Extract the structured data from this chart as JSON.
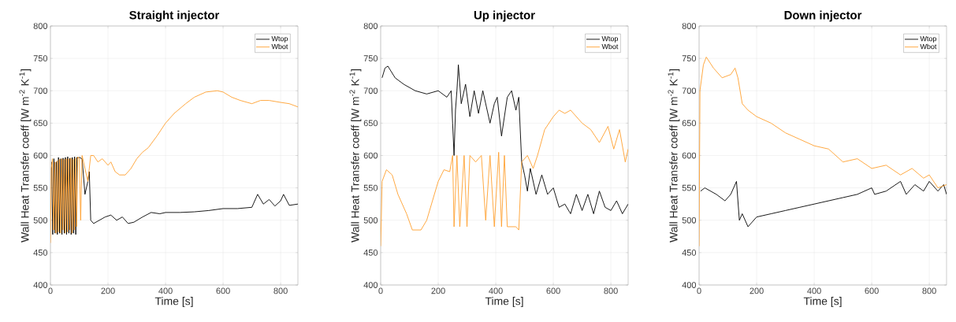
{
  "chart_data": [
    {
      "type": "line",
      "title": "Straight injector",
      "xlabel": "Time [s]",
      "ylabel": "Wall Heat Transfer coeff [W m$^{-2}$ K$^{-1}$]",
      "xlim": [
        0,
        860
      ],
      "ylim": [
        400,
        800
      ],
      "xticks": [
        0,
        200,
        400,
        600,
        800
      ],
      "yticks": [
        400,
        450,
        500,
        550,
        600,
        650,
        700,
        750,
        800
      ],
      "grid": true,
      "legend": "top right",
      "series": [
        {
          "name": "Wtop",
          "color": "#000000",
          "x": [
            4,
            8,
            12,
            16,
            20,
            24,
            28,
            32,
            36,
            40,
            44,
            48,
            52,
            56,
            60,
            64,
            68,
            72,
            76,
            80,
            84,
            88,
            92,
            96,
            100,
            110,
            120,
            130,
            135,
            140,
            150,
            170,
            190,
            210,
            230,
            250,
            270,
            290,
            320,
            350,
            380,
            400,
            450,
            500,
            550,
            600,
            650,
            700,
            720,
            740,
            760,
            780,
            800,
            810,
            830,
            860
          ],
          "values": [
            590,
            478,
            595,
            480,
            590,
            478,
            597,
            480,
            595,
            478,
            596,
            480,
            597,
            478,
            598,
            480,
            596,
            478,
            597,
            480,
            598,
            478,
            597,
            596,
            597,
            595,
            540,
            560,
            575,
            500,
            495,
            500,
            505,
            508,
            500,
            505,
            495,
            497,
            505,
            512,
            510,
            512,
            512,
            513,
            515,
            518,
            518,
            520,
            540,
            525,
            532,
            522,
            530,
            540,
            523,
            525
          ]
        },
        {
          "name": "Wbot",
          "color": "#ff9f2e",
          "x": [
            0,
            3,
            7,
            11,
            15,
            19,
            23,
            27,
            31,
            35,
            39,
            43,
            47,
            51,
            55,
            59,
            63,
            67,
            71,
            75,
            79,
            83,
            87,
            91,
            95,
            100,
            105,
            110,
            120,
            130,
            140,
            150,
            165,
            180,
            200,
            210,
            225,
            240,
            260,
            280,
            300,
            320,
            340,
            370,
            400,
            430,
            470,
            500,
            540,
            580,
            600,
            630,
            660,
            700,
            730,
            760,
            800,
            830,
            860
          ],
          "values": [
            465,
            580,
            595,
            485,
            590,
            480,
            592,
            482,
            594,
            480,
            595,
            485,
            594,
            480,
            595,
            482,
            595,
            485,
            596,
            480,
            594,
            485,
            596,
            490,
            598,
            595,
            500,
            600,
            580,
            560,
            600,
            600,
            590,
            595,
            585,
            590,
            575,
            570,
            570,
            580,
            595,
            605,
            612,
            630,
            650,
            665,
            680,
            690,
            698,
            700,
            698,
            690,
            685,
            680,
            685,
            685,
            682,
            680,
            675
          ]
        }
      ]
    },
    {
      "type": "line",
      "title": "Up injector",
      "xlabel": "Time [s]",
      "ylabel": "Wall Heat Transfer coeff [W m$^{-2}$ K$^{-1}$]",
      "xlim": [
        0,
        860
      ],
      "ylim": [
        400,
        800
      ],
      "xticks": [
        0,
        200,
        400,
        600,
        800
      ],
      "yticks": [
        400,
        450,
        500,
        550,
        600,
        650,
        700,
        750,
        800
      ],
      "grid": true,
      "legend": "top right",
      "series": [
        {
          "name": "Wtop",
          "color": "#000000",
          "x": [
            5,
            15,
            25,
            50,
            80,
            120,
            160,
            200,
            230,
            245,
            250,
            255,
            260,
            265,
            270,
            280,
            295,
            310,
            325,
            340,
            355,
            380,
            395,
            405,
            420,
            440,
            455,
            470,
            480,
            490,
            500,
            510,
            520,
            540,
            560,
            580,
            600,
            620,
            640,
            660,
            680,
            700,
            720,
            740,
            760,
            780,
            800,
            820,
            840,
            860
          ],
          "values": [
            720,
            735,
            738,
            720,
            710,
            700,
            695,
            700,
            690,
            700,
            650,
            600,
            670,
            700,
            740,
            680,
            710,
            660,
            700,
            665,
            700,
            650,
            680,
            690,
            630,
            690,
            700,
            670,
            690,
            590,
            570,
            545,
            580,
            540,
            570,
            540,
            550,
            520,
            525,
            510,
            540,
            515,
            540,
            510,
            545,
            520,
            515,
            530,
            510,
            525
          ]
        },
        {
          "name": "Wbot",
          "color": "#ff9f2e",
          "x": [
            0,
            5,
            20,
            40,
            60,
            90,
            110,
            140,
            160,
            180,
            200,
            220,
            240,
            250,
            255,
            265,
            275,
            290,
            300,
            310,
            330,
            350,
            365,
            380,
            395,
            410,
            420,
            430,
            440,
            470,
            480,
            490,
            510,
            530,
            545,
            570,
            600,
            620,
            640,
            660,
            700,
            730,
            760,
            790,
            810,
            830,
            850,
            860
          ],
          "values": [
            460,
            560,
            578,
            570,
            540,
            510,
            485,
            485,
            500,
            530,
            560,
            578,
            575,
            600,
            490,
            600,
            490,
            600,
            490,
            600,
            590,
            600,
            500,
            600,
            490,
            605,
            490,
            600,
            490,
            490,
            485,
            590,
            600,
            580,
            600,
            640,
            660,
            670,
            665,
            670,
            650,
            640,
            620,
            645,
            610,
            640,
            590,
            610
          ]
        }
      ]
    },
    {
      "type": "line",
      "title": "Down injector",
      "xlabel": "Time [s]",
      "ylabel": "Wall Heat Transfer coeff [W m$^{-2}$ K$^{-1}$]",
      "xlim": [
        0,
        860
      ],
      "ylim": [
        400,
        800
      ],
      "xticks": [
        0,
        200,
        400,
        600,
        800
      ],
      "yticks": [
        400,
        450,
        500,
        550,
        600,
        650,
        700,
        750,
        800
      ],
      "grid": true,
      "legend": "top right",
      "series": [
        {
          "name": "Wtop",
          "color": "#000000",
          "x": [
            5,
            20,
            60,
            90,
            110,
            130,
            140,
            150,
            170,
            200,
            250,
            300,
            350,
            400,
            450,
            500,
            550,
            600,
            610,
            650,
            700,
            720,
            750,
            780,
            800,
            830,
            850,
            860
          ],
          "values": [
            545,
            550,
            540,
            530,
            540,
            560,
            500,
            510,
            490,
            505,
            510,
            515,
            520,
            525,
            530,
            535,
            540,
            550,
            540,
            545,
            560,
            540,
            555,
            545,
            560,
            545,
            555,
            540
          ]
        },
        {
          "name": "Wbot",
          "color": "#ff9f2e",
          "x": [
            0,
            3,
            15,
            25,
            50,
            80,
            110,
            125,
            135,
            150,
            170,
            200,
            250,
            300,
            350,
            400,
            450,
            500,
            550,
            600,
            650,
            700,
            740,
            780,
            800,
            830,
            860
          ],
          "values": [
            460,
            700,
            740,
            752,
            735,
            720,
            725,
            735,
            720,
            680,
            670,
            660,
            650,
            635,
            625,
            615,
            610,
            590,
            595,
            580,
            585,
            570,
            580,
            565,
            570,
            550,
            555
          ]
        }
      ]
    }
  ]
}
